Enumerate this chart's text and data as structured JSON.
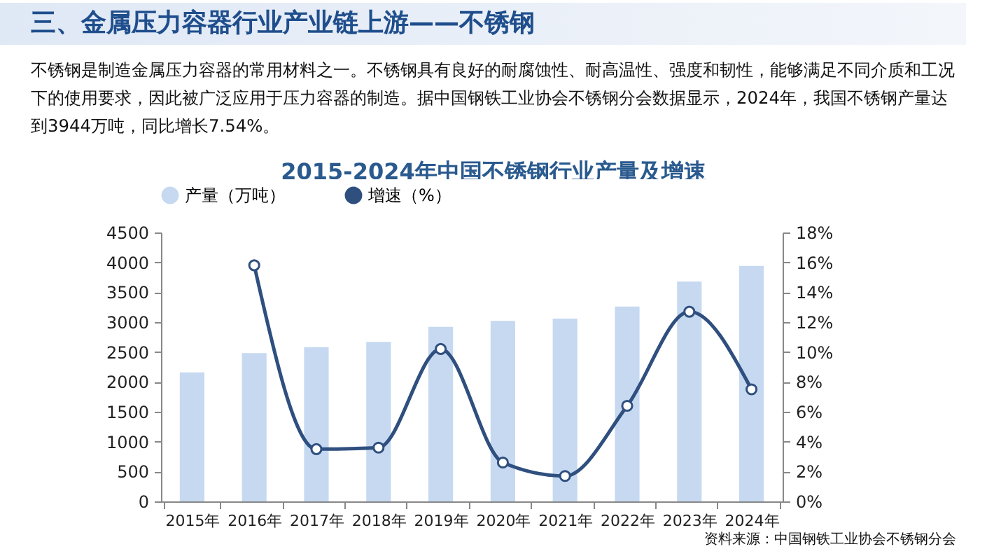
{
  "chart_data": {
    "type": "bar",
    "title": "2015-2024年中国不锈钢行业产量及增速",
    "annotations": [
      "三、金属压力容器行业产业链上游——不锈钢",
      "不锈钢是制造金属压力容器的常用材料之一。不锈钢具有良好的耐腐蚀性、耐高温性、强度和韧性，能够满足不同介质和工况下的使用要求，因此被广泛应用于压力容器的制造。据中国钢铁工业协会不锈钢分会数据显示，2024年，我国不锈钢产量达到3944万吨，同比增长7.54%。",
      "资料来源：中国钢铁工业协会不锈钢分会"
    ],
    "categories": [
      "2015年",
      "2016年",
      "2017年",
      "2018年",
      "2019年",
      "2020年",
      "2021年",
      "2022年",
      "2023年",
      "2024年"
    ],
    "series": [
      {
        "name": "产量（万吨）",
        "color": "#c6d9f1",
        "values": [
          2160,
          2480,
          2580,
          2670,
          2920,
          3020,
          3060,
          3260,
          3680,
          3940
        ]
      },
      {
        "name": "增速（%）",
        "type": "line",
        "axis": "y2",
        "color": "#2f4f7f",
        "values": [
          null,
          15.8,
          3.5,
          3.6,
          10.2,
          2.6,
          1.7,
          6.4,
          12.7,
          7.5
        ]
      }
    ],
    "ylim": [
      0,
      4500
    ],
    "yticks": [
      0,
      500,
      1000,
      1500,
      2000,
      2500,
      3000,
      3500,
      4000,
      4500
    ],
    "y2lim": [
      0,
      18
    ],
    "y2ticks": [
      {
        "value": 0,
        "label": "0%"
      },
      {
        "value": 2,
        "label": "2%"
      },
      {
        "value": 4,
        "label": "4%"
      },
      {
        "value": 6,
        "label": "6%"
      },
      {
        "value": 8,
        "label": "8%"
      },
      {
        "value": 10,
        "label": "10%"
      },
      {
        "value": 12,
        "label": "12%"
      },
      {
        "value": 14,
        "label": "14%"
      },
      {
        "value": 16,
        "label": "16%"
      },
      {
        "value": 18,
        "label": "18%"
      }
    ],
    "legend": "top",
    "marker": "circle",
    "line_style": "solid"
  }
}
